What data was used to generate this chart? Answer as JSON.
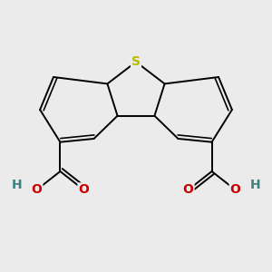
{
  "background_color": "#ebebeb",
  "bond_color": "#000000",
  "S_color": "#b8b800",
  "O_color": "#cc0000",
  "H_color": "#408080",
  "label_S": "S",
  "label_O": "O",
  "label_H": "H",
  "figsize": [
    3.0,
    3.0
  ],
  "dpi": 100,
  "xlim": [
    -4.0,
    4.0
  ],
  "ylim": [
    -3.5,
    3.5
  ]
}
